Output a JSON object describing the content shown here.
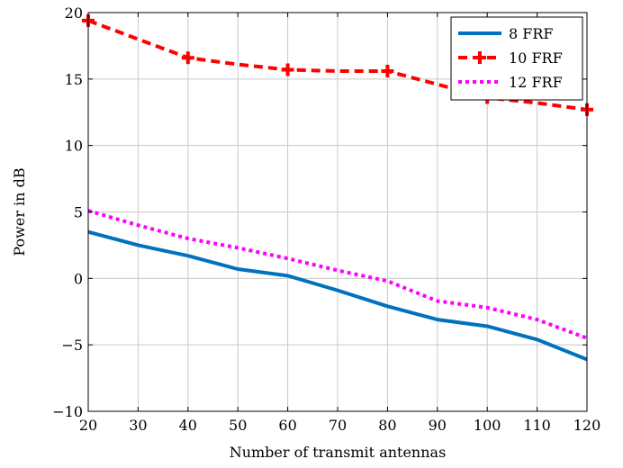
{
  "chart_data": {
    "type": "line",
    "title": "",
    "xlabel": "Number of transmit antennas",
    "ylabel": "Power in dB",
    "xlim": [
      20,
      120
    ],
    "ylim": [
      -10,
      20
    ],
    "xticks": [
      20,
      30,
      40,
      50,
      60,
      70,
      80,
      90,
      100,
      110,
      120
    ],
    "yticks": [
      -10,
      -5,
      0,
      5,
      10,
      15,
      20
    ],
    "ytick_labels": [
      "−10",
      "−5",
      "0",
      "5",
      "10",
      "15",
      "20"
    ],
    "grid": true,
    "legend_position": "top-right",
    "x": [
      20,
      30,
      40,
      50,
      60,
      70,
      80,
      90,
      100,
      110,
      120
    ],
    "series": [
      {
        "name": "8 FRF",
        "color": "#0072BD",
        "style": "solid",
        "marker": "none",
        "values": [
          3.5,
          2.5,
          1.7,
          0.7,
          0.2,
          -0.9,
          -2.1,
          -3.1,
          -3.6,
          -4.6,
          -6.1
        ]
      },
      {
        "name": "10 FRF",
        "color": "#ff0000",
        "style": "dashed",
        "marker": "plus",
        "values": [
          19.4,
          18.0,
          16.6,
          16.1,
          15.7,
          15.6,
          15.6,
          14.6,
          13.6,
          13.2,
          12.7
        ],
        "marker_x": [
          20,
          40,
          60,
          80,
          100,
          120
        ]
      },
      {
        "name": "12 FRF",
        "color": "#ff00ff",
        "style": "dotted",
        "marker": "none",
        "values": [
          5.1,
          4.0,
          3.0,
          2.3,
          1.5,
          0.6,
          -0.2,
          -1.7,
          -2.2,
          -3.1,
          -4.5
        ]
      }
    ]
  }
}
